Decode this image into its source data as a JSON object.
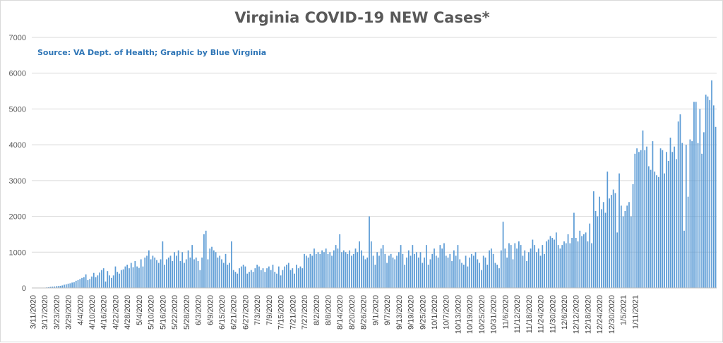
{
  "chart_data": {
    "type": "bar",
    "title": "Virginia COVID-19 NEW Cases*",
    "subtitle": "Source: VA Dept. of Health; Graphic by Blue Virginia",
    "xlabel": "",
    "ylabel": "",
    "ylim": [
      0,
      7000
    ],
    "yticks": [
      0,
      1000,
      2000,
      3000,
      4000,
      5000,
      6000,
      7000
    ],
    "grid": true,
    "legend": "none",
    "bar_color": "#5b9bd5",
    "x_tick_labels": [
      "3/11/2020",
      "3/17/2020",
      "3/23/2020",
      "3/29/2020",
      "4/4/2020",
      "4/10/2020",
      "4/16/2020",
      "4/22/2020",
      "4/28/2020",
      "5/4/2020",
      "5/10/2020",
      "5/16/2020",
      "5/22/2020",
      "5/28/2020",
      "6/3/2020",
      "6/9/2020",
      "6/15/2020",
      "6/21/2020",
      "6/27/2020",
      "7/3/2020",
      "7/9/2020",
      "7/15/2020",
      "7/21/2020",
      "7/27/2020",
      "8/2/2020",
      "8/8/2020",
      "8/14/2020",
      "8/20/2020",
      "8/26/2020",
      "9/1/2020",
      "9/7/2020",
      "9/13/2020",
      "9/19/2020",
      "9/25/2020",
      "10/1/2020",
      "10/7/2020",
      "10/13/2020",
      "10/19/2020",
      "10/25/2020",
      "10/31/2020",
      "11/6/2020",
      "11/12/2020",
      "11/18/2020",
      "11/24/2020",
      "11/30/2020",
      "12/6/2020",
      "12/12/2020",
      "12/18/2020",
      "12/24/2020",
      "12/30/2020",
      "1/5/2021",
      "1/11/2021"
    ],
    "values": [
      2,
      3,
      4,
      5,
      6,
      8,
      10,
      15,
      20,
      30,
      35,
      40,
      50,
      55,
      60,
      70,
      90,
      100,
      120,
      130,
      150,
      160,
      200,
      220,
      250,
      280,
      300,
      380,
      220,
      250,
      320,
      420,
      300,
      350,
      430,
      500,
      550,
      180,
      470,
      350,
      280,
      350,
      600,
      450,
      400,
      500,
      520,
      600,
      650,
      550,
      700,
      580,
      750,
      600,
      560,
      800,
      600,
      850,
      900,
      1050,
      800,
      900,
      850,
      780,
      700,
      800,
      1300,
      650,
      800,
      850,
      900,
      750,
      1000,
      900,
      1050,
      750,
      1000,
      700,
      800,
      1050,
      850,
      1200,
      800,
      850,
      750,
      500,
      850,
      1500,
      1600,
      800,
      1100,
      1150,
      1050,
      1000,
      850,
      900,
      800,
      700,
      950,
      650,
      700,
      1300,
      500,
      450,
      400,
      550,
      600,
      650,
      600,
      400,
      450,
      500,
      450,
      550,
      650,
      600,
      500,
      550,
      450,
      550,
      600,
      500,
      650,
      450,
      400,
      600,
      350,
      500,
      600,
      650,
      700,
      500,
      550,
      400,
      650,
      550,
      600,
      550,
      950,
      900,
      850,
      950,
      900,
      1100,
      950,
      1000,
      950,
      1050,
      1000,
      1100,
      950,
      1000,
      900,
      1050,
      1200,
      1100,
      1500,
      1000,
      1050,
      1000,
      950,
      1050,
      900,
      950,
      1100,
      1000,
      1300,
      1050,
      900,
      800,
      850,
      2000,
      1300,
      900,
      650,
      1000,
      900,
      1100,
      1200,
      950,
      700,
      900,
      950,
      850,
      800,
      900,
      1000,
      1200,
      950,
      650,
      850,
      1050,
      900,
      1200,
      950,
      1000,
      850,
      1000,
      700,
      850,
      1200,
      650,
      800,
      950,
      1100,
      900,
      850,
      1200,
      1100,
      1250,
      900,
      850,
      950,
      750,
      1050,
      900,
      1200,
      800,
      700,
      650,
      900,
      600,
      850,
      950,
      900,
      1000,
      800,
      700,
      500,
      900,
      850,
      650,
      1050,
      1100,
      950,
      700,
      650,
      550,
      1050,
      1850,
      1100,
      850,
      1250,
      1200,
      800,
      1250,
      1100,
      1300,
      1200,
      900,
      1050,
      750,
      1000,
      1100,
      1350,
      1200,
      1000,
      1100,
      900,
      1200,
      950,
      1300,
      1350,
      1450,
      1400,
      1350,
      1550,
      1200,
      1100,
      1200,
      1300,
      1250,
      1500,
      1250,
      1400,
      2100,
      1400,
      1300,
      1600,
      1450,
      1500,
      1550,
      1300,
      1800,
      1250,
      2700,
      2150,
      2000,
      2550,
      2200,
      2400,
      2100,
      3250,
      2500,
      2600,
      2750,
      2650,
      1550,
      3200,
      2300,
      2000,
      2150,
      2300,
      2400,
      2000,
      2900,
      3750,
      3900,
      3800,
      3850,
      4400,
      3850,
      3950,
      3400,
      3300,
      4100,
      3250,
      3150,
      3100,
      3900,
      3850,
      3200,
      3800,
      3550,
      4200,
      3800,
      3950,
      3600,
      4650,
      4850,
      4050,
      1600,
      4000,
      2550,
      4150,
      4100,
      5200,
      5200,
      4050,
      5000,
      3750,
      4350,
      5400,
      5350,
      5250,
      5800,
      5100,
      4500
    ]
  }
}
